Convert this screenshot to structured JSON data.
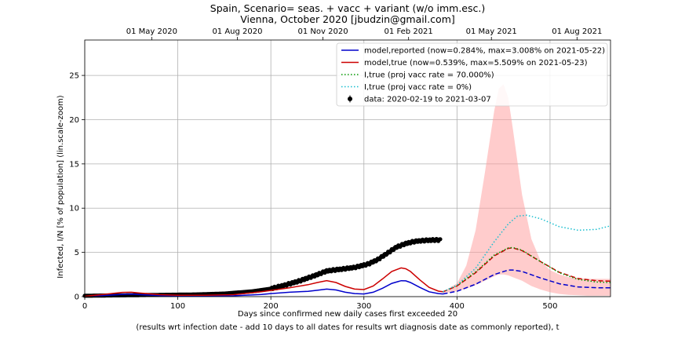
{
  "chart_data": {
    "type": "line",
    "title": "Spain, Scenario= seas. + vacc + variant (w/o imm.esc.)",
    "subtitle": "Vienna, October 2020 [jbudzin@gmail.com]",
    "xlabel": "Days since confirmed new daily cases first exceeded 20",
    "xlabel2": "(results wrt infection date - add 10 days to all dates for results wrt diagnosis date as commonly reported), t",
    "ylabel": "Infected, I/N [% of population] (lin.scale-zoom)",
    "xlim": [
      0,
      565
    ],
    "ylim": [
      0,
      29
    ],
    "grid": true,
    "legend_position": "top-right",
    "x_ticks": [
      0,
      100,
      200,
      300,
      400,
      500
    ],
    "y_ticks": [
      0,
      5,
      10,
      15,
      20,
      25
    ],
    "top_axis": {
      "ticks": [
        {
          "x": 72,
          "label": "01 May 2020"
        },
        {
          "x": 164,
          "label": "01 Aug 2020"
        },
        {
          "x": 256,
          "label": "01 Nov 2020"
        },
        {
          "x": 348,
          "label": "01 Feb 2021"
        },
        {
          "x": 437,
          "label": "01 May 2021"
        },
        {
          "x": 529,
          "label": "01 Aug 2021"
        }
      ]
    },
    "legend": [
      {
        "label": "model,reported (now=0.284%, max=3.008% on 2021-05-22)",
        "color": "#0000cc",
        "style": "solid"
      },
      {
        "label": "model,true (now=0.539%, max=5.509% on 2021-05-23)",
        "color": "#cc0000",
        "style": "solid"
      },
      {
        "label": "I,true (proj vacc rate = 70.000%)",
        "color": "#009900",
        "style": "dotted"
      },
      {
        "label": "I,true (proj vacc rate = 0%)",
        "color": "#17becf",
        "style": "dotted"
      },
      {
        "label": "data: 2020-02-19 to 2021-03-07",
        "color": "#000000",
        "style": "marker"
      }
    ],
    "series": [
      {
        "name": "model,reported (now=0.284%, max=3.008% on 2021-05-22)",
        "color": "#0000cc",
        "x": [
          0,
          20,
          40,
          50,
          60,
          80,
          100,
          130,
          160,
          190,
          200,
          220,
          240,
          250,
          260,
          270,
          280,
          290,
          300,
          310,
          320,
          330,
          340,
          345,
          350,
          360,
          370,
          380,
          385
        ],
        "y": [
          0.02,
          0.12,
          0.26,
          0.28,
          0.22,
          0.12,
          0.08,
          0.07,
          0.1,
          0.25,
          0.35,
          0.5,
          0.6,
          0.72,
          0.85,
          0.75,
          0.5,
          0.35,
          0.3,
          0.5,
          0.95,
          1.5,
          1.8,
          1.78,
          1.6,
          1.05,
          0.55,
          0.35,
          0.3
        ]
      },
      {
        "name": "model,true (now=0.539%, max=5.509% on 2021-05-23)",
        "color": "#cc0000",
        "x": [
          0,
          20,
          40,
          50,
          60,
          80,
          100,
          130,
          160,
          190,
          200,
          220,
          240,
          250,
          260,
          270,
          280,
          290,
          300,
          310,
          320,
          330,
          340,
          345,
          350,
          360,
          370,
          380,
          385
        ],
        "y": [
          0.04,
          0.25,
          0.48,
          0.5,
          0.4,
          0.22,
          0.16,
          0.15,
          0.22,
          0.55,
          0.7,
          1.0,
          1.35,
          1.6,
          1.8,
          1.6,
          1.15,
          0.85,
          0.8,
          1.2,
          2.0,
          2.85,
          3.25,
          3.15,
          2.85,
          1.9,
          1.05,
          0.62,
          0.55
        ]
      },
      {
        "name": "model,reported projection",
        "color": "#0000cc",
        "dash": "dashed",
        "x": [
          385,
          400,
          420,
          440,
          455,
          460,
          470,
          490,
          510,
          530,
          550,
          565
        ],
        "y": [
          0.3,
          0.6,
          1.4,
          2.5,
          3.0,
          3.01,
          2.85,
          2.1,
          1.45,
          1.1,
          1.0,
          1.0
        ]
      },
      {
        "name": "model,true projection",
        "color": "#cc0000",
        "dash": "dashed",
        "x": [
          385,
          400,
          420,
          440,
          455,
          460,
          470,
          490,
          510,
          530,
          550,
          565
        ],
        "y": [
          0.55,
          1.2,
          2.7,
          4.6,
          5.45,
          5.51,
          5.2,
          3.95,
          2.75,
          2.05,
          1.8,
          1.75
        ]
      },
      {
        "name": "I,true (proj vacc rate = 70.000%)",
        "color": "#009900",
        "dash": "dotted",
        "x": [
          385,
          400,
          420,
          440,
          455,
          460,
          470,
          490,
          510,
          530,
          550,
          565
        ],
        "y": [
          0.55,
          1.25,
          2.8,
          4.7,
          5.5,
          5.55,
          5.25,
          3.95,
          2.7,
          1.95,
          1.65,
          1.6
        ]
      },
      {
        "name": "I,true (proj vacc rate = 0%)",
        "color": "#17becf",
        "dash": "dotted",
        "x": [
          385,
          400,
          420,
          440,
          455,
          465,
          475,
          490,
          510,
          530,
          550,
          565
        ],
        "y": [
          0.55,
          1.3,
          3.2,
          6.2,
          8.2,
          9.1,
          9.2,
          8.8,
          7.9,
          7.5,
          7.6,
          8.0
        ]
      }
    ],
    "band": {
      "name": "uncertainty band",
      "color": "#ff9999",
      "x": [
        385,
        400,
        410,
        420,
        430,
        440,
        445,
        450,
        455,
        460,
        470,
        480,
        490,
        500,
        510,
        520,
        530,
        540,
        550,
        565
      ],
      "upper": [
        0.55,
        1.5,
        3.5,
        7.5,
        14.0,
        21.0,
        23.5,
        24.0,
        22.5,
        19.0,
        11.5,
        6.5,
        4.0,
        3.0,
        2.5,
        2.2,
        2.1,
        2.0,
        2.0,
        2.0
      ],
      "lower": [
        0.4,
        0.6,
        0.9,
        1.3,
        1.8,
        2.3,
        2.5,
        2.5,
        2.4,
        2.2,
        1.8,
        1.2,
        0.8,
        0.5,
        0.3,
        0.2,
        0.15,
        0.1,
        0.1,
        0.1
      ]
    },
    "data_points": {
      "name": "data: 2020-02-19 to 2021-03-07",
      "color": "#000000",
      "x_start": 0,
      "x_end": 382,
      "anchors_x": [
        0,
        40,
        80,
        120,
        150,
        180,
        200,
        215,
        230,
        245,
        260,
        275,
        290,
        305,
        315,
        325,
        335,
        345,
        355,
        365,
        375,
        382
      ],
      "anchors_y": [
        0.1,
        0.15,
        0.2,
        0.25,
        0.35,
        0.6,
        0.9,
        1.3,
        1.75,
        2.3,
        2.9,
        3.1,
        3.3,
        3.7,
        4.2,
        4.9,
        5.6,
        6.0,
        6.25,
        6.35,
        6.4,
        6.4
      ]
    }
  }
}
